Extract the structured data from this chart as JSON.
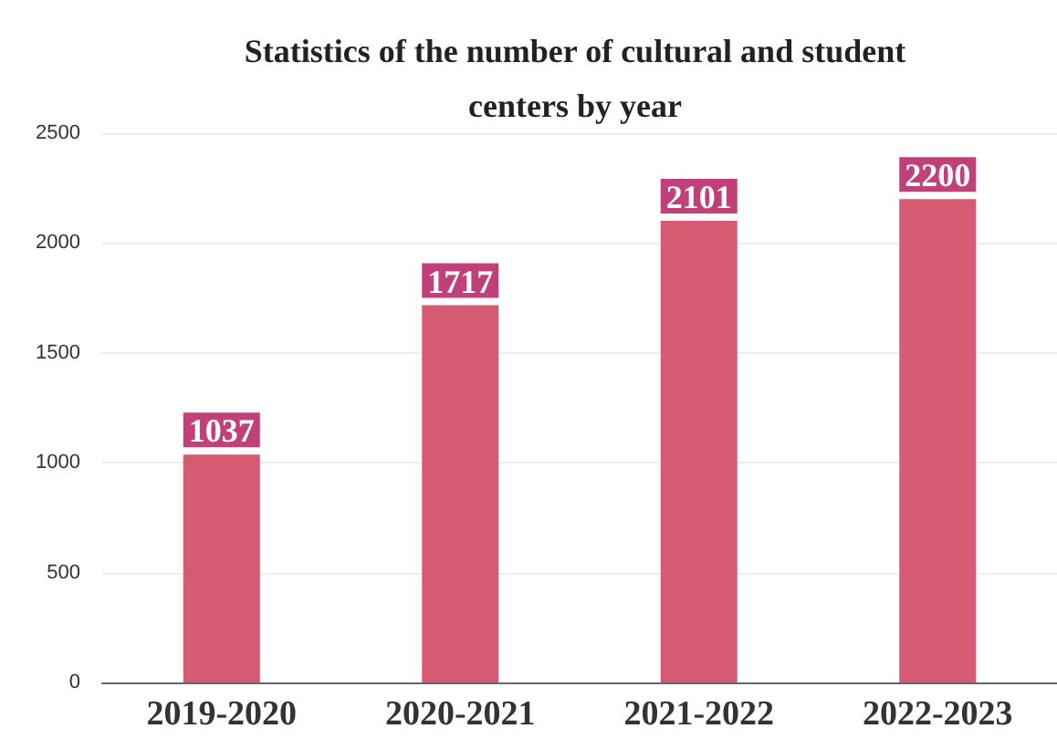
{
  "chart_data": {
    "type": "bar",
    "title": "Statistics of the number of cultural and student\ncenters by year",
    "categories": [
      "2019-2020",
      "2020-2021",
      "2021-2022",
      "2022-2023"
    ],
    "values": [
      1037,
      1717,
      2101,
      2200
    ],
    "color": "#d65a72",
    "ylim": [
      0,
      2500
    ],
    "yticks": [
      0,
      500,
      1000,
      1500,
      2000,
      2500
    ],
    "grid": "y",
    "data_labels": true
  }
}
